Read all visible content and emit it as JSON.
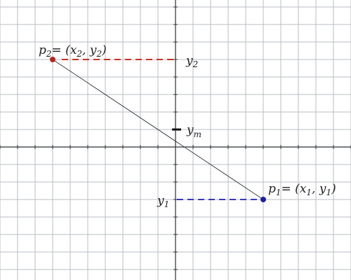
{
  "colors": {
    "background": "#ffffff",
    "grid": "#b9bec4",
    "axis": "#2b2f33",
    "segment": "#3a3f44",
    "p1": "#1f1f9e",
    "p2": "#b8251e",
    "y1_dash": "#3a3ab8",
    "y2_dash": "#c8322a"
  },
  "labels": {
    "p2": {
      "name": "p",
      "sub": "2",
      "eq": "= (",
      "x": "x",
      "x_sub": "2",
      "comma": ", ",
      "y": "y",
      "y_sub": "2",
      "close": ")"
    },
    "p1": {
      "name": "p",
      "sub": "1",
      "eq": "= (",
      "x": "x",
      "x_sub": "1",
      "comma": ", ",
      "y": "y",
      "y_sub": "1",
      "close": ")"
    },
    "y2": {
      "name": "y",
      "sub": "2"
    },
    "y1": {
      "name": "y",
      "sub": "1"
    },
    "ym": {
      "name": "y",
      "sub": "m"
    }
  }
}
